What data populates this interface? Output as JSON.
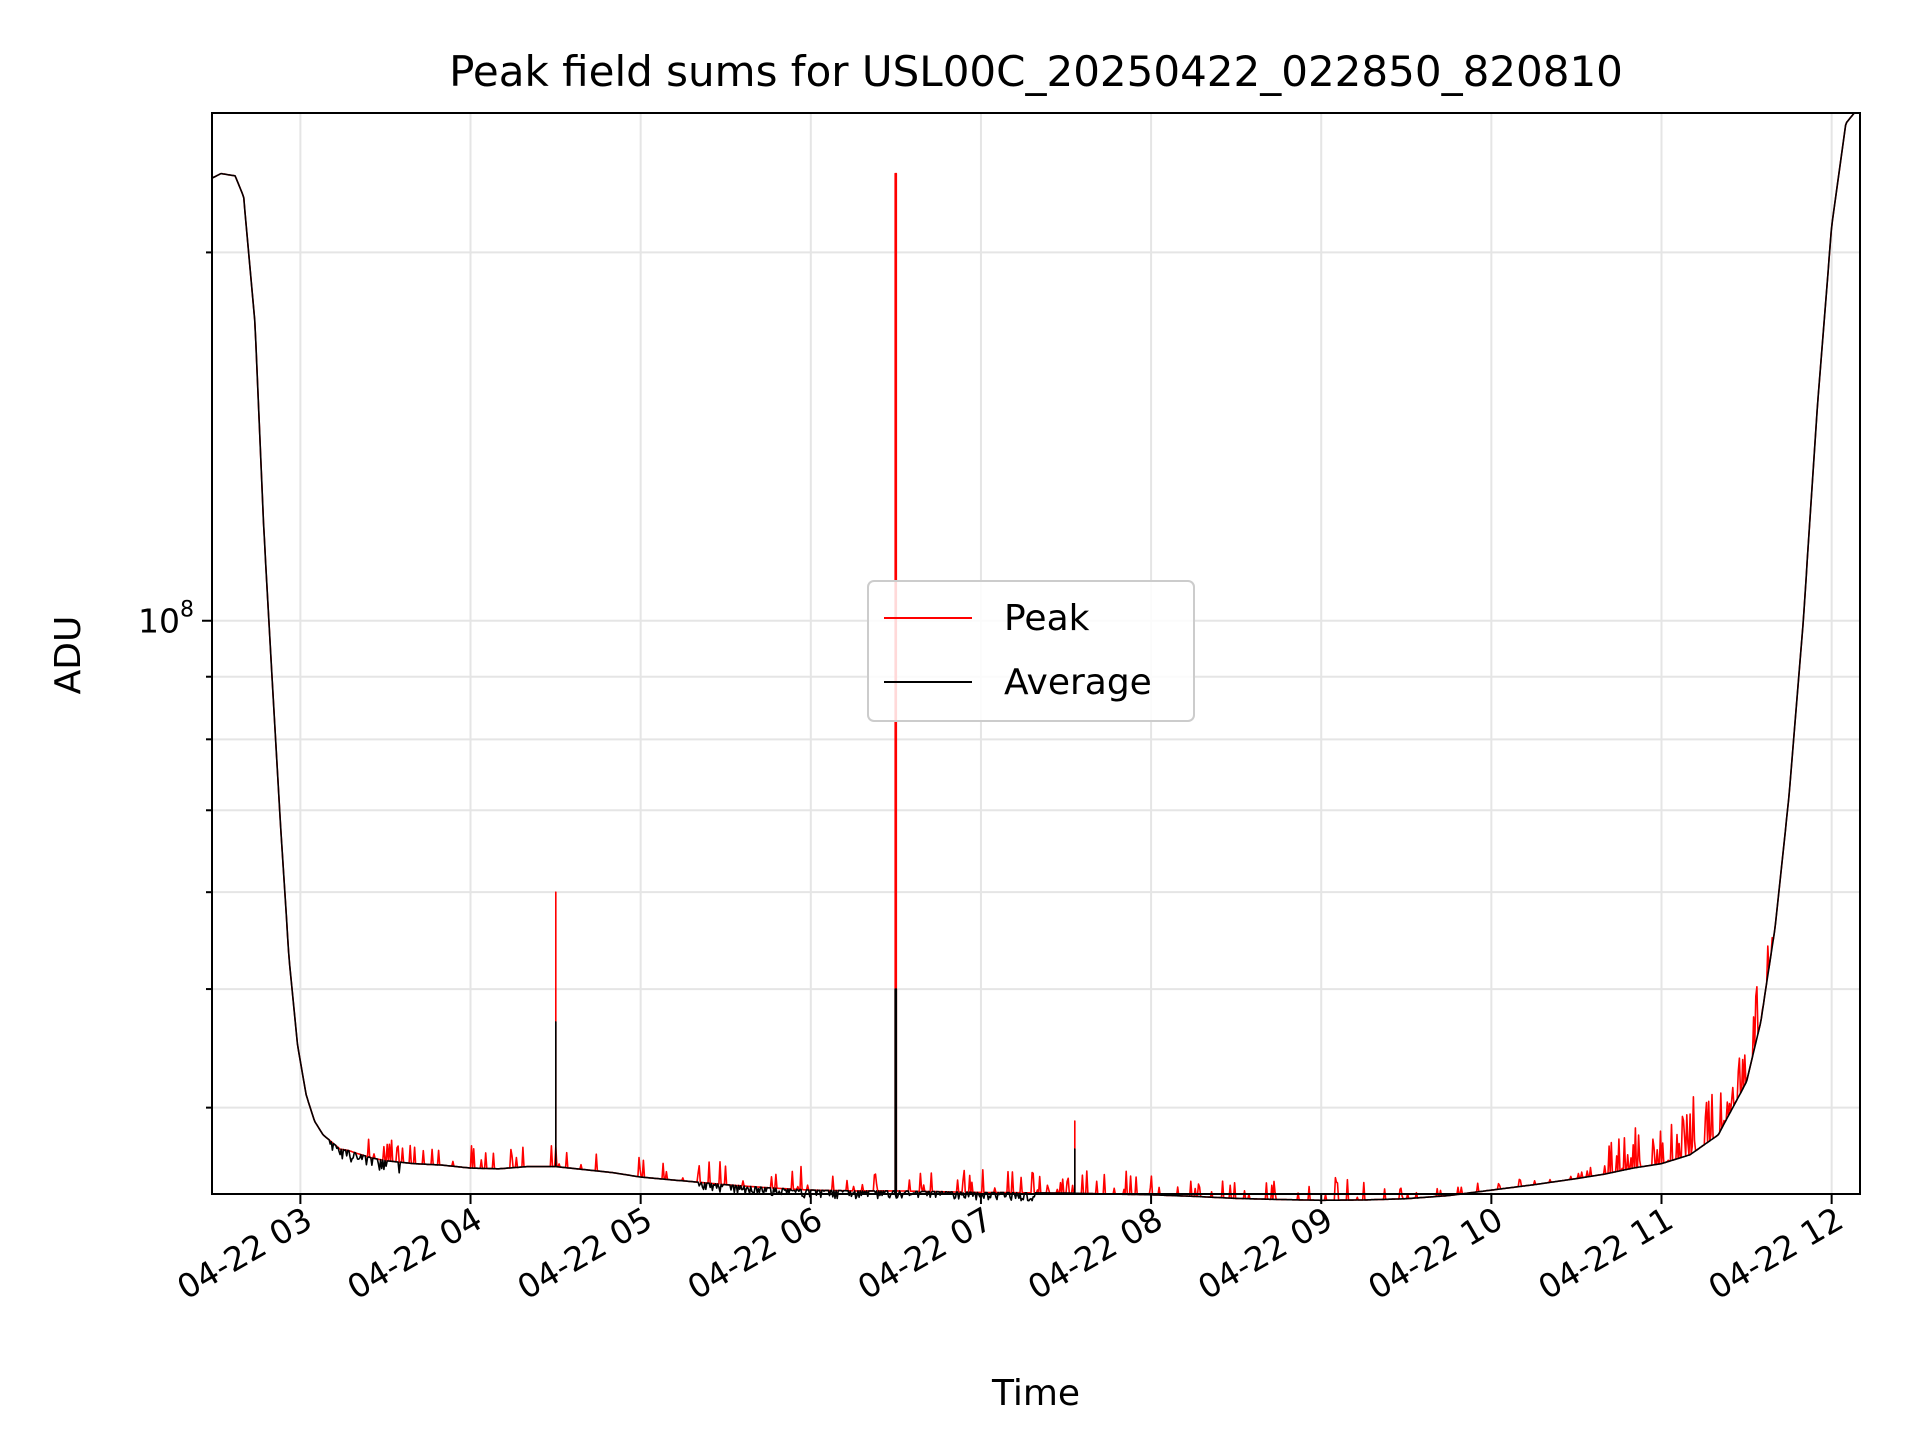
{
  "chart_data": {
    "type": "line",
    "title": "Peak field sums for USL00C_20250422_022850_820810",
    "xlabel": "Time",
    "ylabel": "ADU",
    "x_tick_labels": [
      "04-22 03",
      "04-22 04",
      "04-22 05",
      "04-22 06",
      "04-22 07",
      "04-22 08",
      "04-22 09",
      "04-22 10",
      "04-22 11",
      "04-22 12"
    ],
    "y_tick_label": "10^8",
    "y_tick_label_parts": {
      "base": "10",
      "exponent": "8"
    },
    "yscale": "log",
    "xlim": [
      "2025-04-22 02:28:50",
      "2025-04-22 12:10:00"
    ],
    "ylim": [
      34000000,
      260000000
    ],
    "grid": true,
    "legend_position": "center",
    "series": [
      {
        "name": "Peak",
        "color": "#ff0000",
        "x": [
          "02:28:50",
          "02:32",
          "02:37",
          "02:40",
          "02:44",
          "02:47",
          "02:50",
          "02:53",
          "02:56",
          "02:59",
          "03:02",
          "03:05",
          "03:08",
          "03:11",
          "03:14",
          "03:17",
          "03:20",
          "03:25",
          "03:30",
          "03:40",
          "03:50",
          "04:00",
          "04:10",
          "04:20",
          "04:30",
          "04:40",
          "04:50",
          "05:00",
          "05:15",
          "05:30",
          "05:45",
          "06:00",
          "06:15",
          "06:30",
          "06:45",
          "07:00",
          "07:15",
          "07:30",
          "07:45",
          "08:00",
          "08:15",
          "08:30",
          "08:45",
          "09:00",
          "09:15",
          "09:30",
          "09:45",
          "10:00",
          "10:15",
          "10:30",
          "10:40",
          "10:50",
          "11:00",
          "11:10",
          "11:20",
          "11:30",
          "11:35",
          "11:40",
          "11:45",
          "11:50",
          "11:55",
          "12:00",
          "12:05",
          "12:08"
        ],
        "y": [
          230000000,
          232000000,
          231000000,
          222000000,
          175000000,
          120000000,
          90000000,
          68000000,
          53000000,
          45000000,
          41000000,
          39000000,
          38000000,
          37500000,
          37000000,
          36900000,
          36700000,
          36400000,
          36200000,
          36000000,
          35900000,
          35700000,
          35650000,
          35800000,
          35800000,
          35600000,
          35400000,
          35100000,
          34850000,
          34600000,
          34400000,
          34250000,
          34200000,
          34200000,
          34150000,
          34100000,
          34080000,
          34060000,
          34000000,
          33950000,
          33850000,
          33720000,
          33650000,
          33600000,
          33620000,
          33700000,
          33900000,
          34250000,
          34600000,
          35000000,
          35300000,
          35700000,
          36000000,
          36600000,
          38000000,
          42000000,
          47000000,
          56000000,
          72000000,
          100000000,
          150000000,
          210000000,
          255000000,
          260000000
        ],
        "spikes": [
          {
            "x": "04:30",
            "y": 60000000
          },
          {
            "x": "06:30",
            "y": 232000000
          },
          {
            "x": "07:33",
            "y": 39000000
          }
        ]
      },
      {
        "name": "Average",
        "color": "#000000",
        "x": [
          "02:28:50",
          "02:32",
          "02:37",
          "02:40",
          "02:44",
          "02:47",
          "02:50",
          "02:53",
          "02:56",
          "02:59",
          "03:02",
          "03:05",
          "03:08",
          "03:11",
          "03:14",
          "03:17",
          "03:20",
          "03:25",
          "03:30",
          "03:40",
          "03:50",
          "04:00",
          "04:10",
          "04:20",
          "04:30",
          "04:40",
          "04:50",
          "05:00",
          "05:15",
          "05:30",
          "05:45",
          "06:00",
          "06:15",
          "06:30",
          "06:45",
          "07:00",
          "07:15",
          "07:30",
          "07:45",
          "08:00",
          "08:15",
          "08:30",
          "08:45",
          "09:00",
          "09:15",
          "09:30",
          "09:45",
          "10:00",
          "10:15",
          "10:30",
          "10:40",
          "10:50",
          "11:00",
          "11:10",
          "11:20",
          "11:30",
          "11:35",
          "11:40",
          "11:45",
          "11:50",
          "11:55",
          "12:00",
          "12:05",
          "12:08"
        ],
        "y": [
          230000000,
          232000000,
          231000000,
          222000000,
          175000000,
          120000000,
          90000000,
          68000000,
          53000000,
          45000000,
          41000000,
          39000000,
          38000000,
          37500000,
          37000000,
          36900000,
          36700000,
          36400000,
          36200000,
          36000000,
          35900000,
          35700000,
          35650000,
          35800000,
          35800000,
          35600000,
          35400000,
          35100000,
          34850000,
          34600000,
          34400000,
          34250000,
          34200000,
          34200000,
          34150000,
          34100000,
          34080000,
          34060000,
          34000000,
          33950000,
          33850000,
          33720000,
          33650000,
          33600000,
          33620000,
          33700000,
          33900000,
          34250000,
          34600000,
          35000000,
          35300000,
          35700000,
          36000000,
          36600000,
          38000000,
          42000000,
          47000000,
          56000000,
          72000000,
          100000000,
          150000000,
          210000000,
          255000000,
          260000000
        ],
        "spikes": [
          {
            "x": "04:30",
            "y": 47000000
          },
          {
            "x": "06:30",
            "y": 50000000
          },
          {
            "x": "07:33",
            "y": 37000000
          }
        ]
      }
    ]
  }
}
